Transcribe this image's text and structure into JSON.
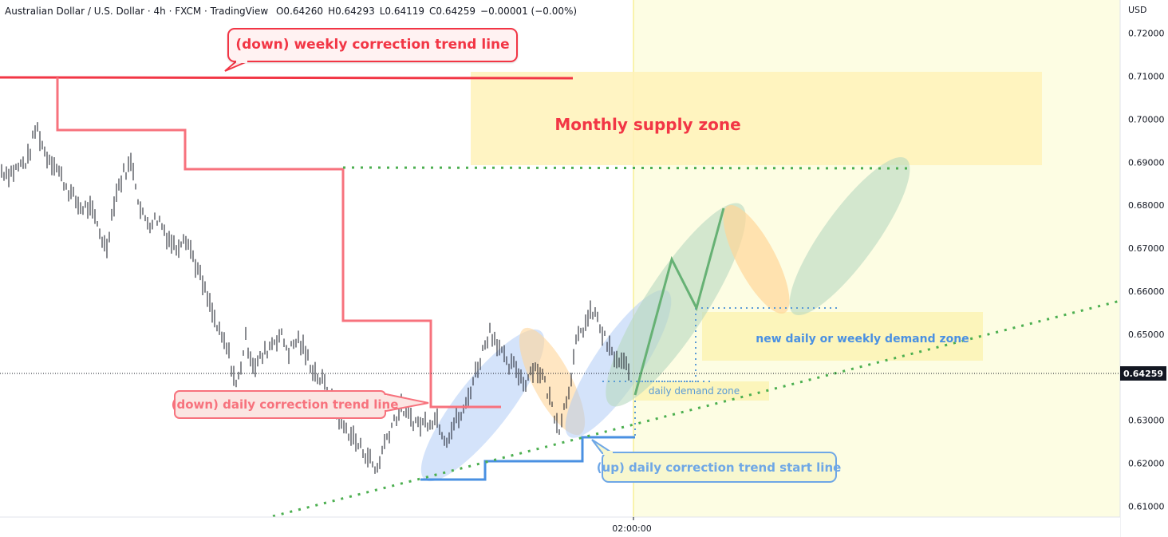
{
  "header": {
    "symbol_text": "Australian Dollar / U.S. Dollar · 4h · FXCM · TradingView",
    "open": "O0.64260",
    "high": "H0.64293",
    "low": "L0.64119",
    "close": "C0.64259",
    "change": "−0.00001 (−0.00%)"
  },
  "price_axis": {
    "currency": "USD",
    "ticks": [
      "0.72000",
      "0.71000",
      "0.70000",
      "0.69000",
      "0.68000",
      "0.67000",
      "0.66000",
      "0.65000",
      "0.64000",
      "0.63000",
      "0.62000",
      "0.61000"
    ],
    "last_price": "0.64259"
  },
  "time_axis": {
    "label": "02:00:00"
  },
  "annotations": {
    "weekly_down": "(down) weekly correction trend line",
    "supply_zone": "Monthly supply zone",
    "daily_down": "(down) daily correction trend line",
    "daily_demand": "daily demand zone",
    "new_demand": "new daily or weekly demand zone",
    "daily_up": "(up) daily correction trend start line"
  },
  "colors": {
    "red_line": "#f23645",
    "salmon_line": "#f7727d",
    "blue_line": "#4a90e2",
    "green_dots": "#4caf50",
    "green_path": "#5aa469",
    "future_bg": "#fdfde3",
    "supply_zone": "#fff4c2",
    "demand_zone": "#fdf7c4",
    "label_blue_text": "#4a90e2",
    "label_red_text": "#f23645"
  },
  "chart_data": {
    "type": "candlestick",
    "title": "Australian Dollar / U.S. Dollar · 4h · FXCM · TradingView",
    "ylabel": "USD",
    "ylim": [
      0.6075,
      0.7255
    ],
    "y_ticks": [
      0.72,
      0.71,
      0.7,
      0.69,
      0.68,
      0.67,
      0.66,
      0.65,
      0.64,
      0.63,
      0.62,
      0.61
    ],
    "last_price": 0.64259,
    "ohlc_latest": {
      "open": 0.6426,
      "high": 0.64293,
      "low": 0.64119,
      "close": 0.64259,
      "change": -1e-05,
      "change_pct": -0.0
    },
    "price_path": [
      0.688,
      0.6875,
      0.689,
      0.6905,
      0.6985,
      0.692,
      0.69,
      0.686,
      0.6825,
      0.6795,
      0.6795,
      0.6755,
      0.6695,
      0.682,
      0.6875,
      0.69,
      0.678,
      0.676,
      0.677,
      0.673,
      0.67,
      0.6735,
      0.668,
      0.662,
      0.656,
      0.65,
      0.646,
      0.6375,
      0.649,
      0.6425,
      0.645,
      0.648,
      0.65,
      0.646,
      0.649,
      0.645,
      0.641,
      0.6385,
      0.634,
      0.629,
      0.627,
      0.624,
      0.622,
      0.618,
      0.625,
      0.63,
      0.633,
      0.6305,
      0.629,
      0.63,
      0.6305,
      0.6255,
      0.6295,
      0.6315,
      0.6385,
      0.6445,
      0.651,
      0.648,
      0.6425,
      0.6425,
      0.6385,
      0.6425,
      0.641,
      0.6345,
      0.6285,
      0.636,
      0.648,
      0.6525,
      0.6555,
      0.65,
      0.6455,
      0.643,
      0.6426
    ]
  }
}
